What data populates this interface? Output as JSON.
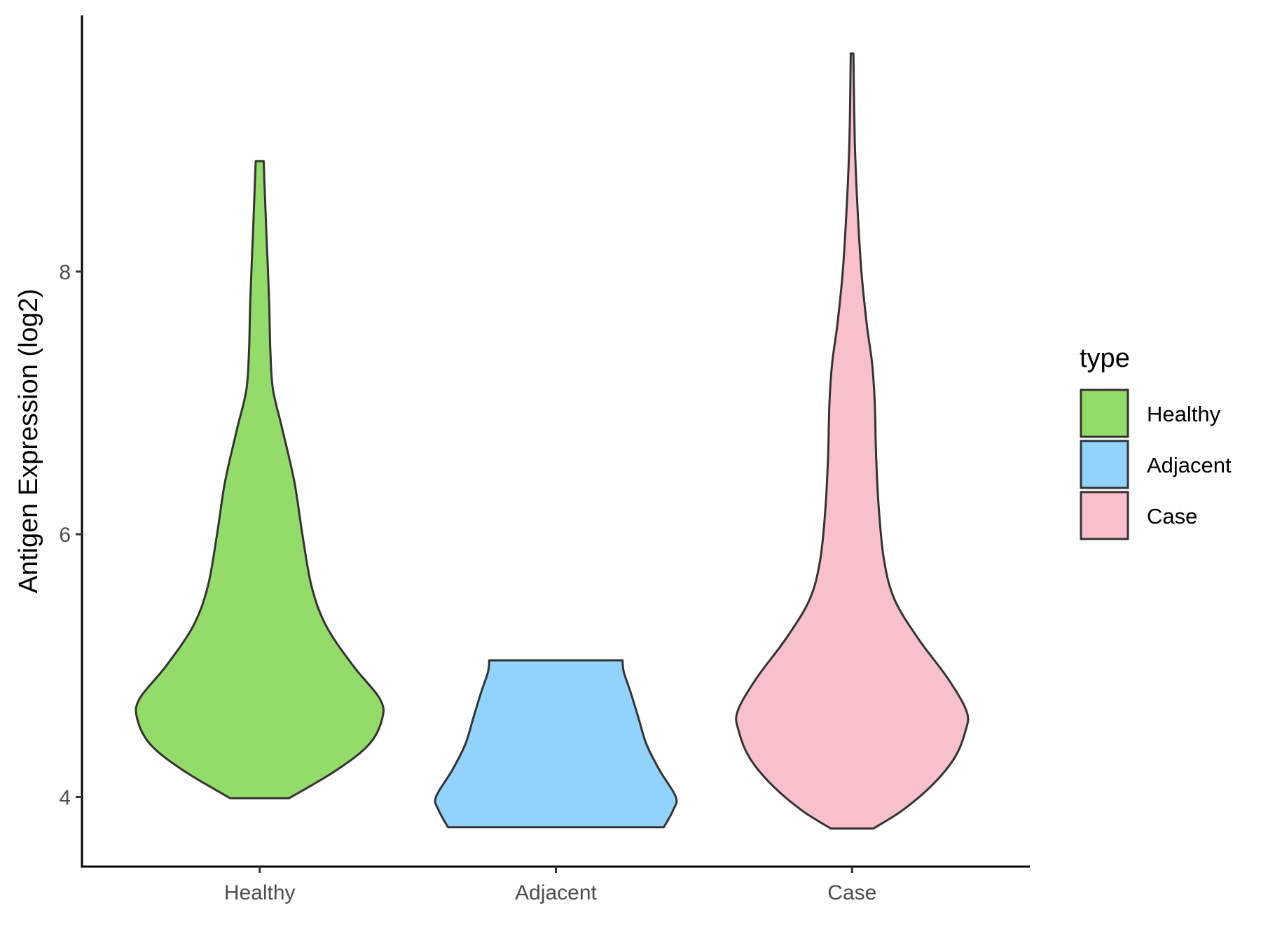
{
  "chart_data": {
    "type": "violin",
    "title": "",
    "xlabel": "",
    "ylabel": "Antigen Expression (log2)",
    "categories": [
      "Healthy",
      "Adjacent",
      "Case"
    ],
    "yticks": [
      4,
      6,
      8
    ],
    "ylim": [
      3.47,
      9.95
    ],
    "grid": false,
    "legend": {
      "title": "type",
      "position": "right",
      "entries": [
        "Healthy",
        "Adjacent",
        "Case"
      ]
    },
    "colors": {
      "Healthy": "#93dc6a",
      "Adjacent": "#92d3fd",
      "Case": "#f8c0cb",
      "outline": "#333333"
    },
    "series": [
      {
        "category": "Healthy",
        "min": 3.99,
        "max": 8.84,
        "profile": [
          [
            3.99,
            0.22
          ],
          [
            4.2,
            0.57
          ],
          [
            4.4,
            0.82
          ],
          [
            4.6,
            0.92
          ],
          [
            4.75,
            0.9
          ],
          [
            5.0,
            0.7
          ],
          [
            5.3,
            0.5
          ],
          [
            5.6,
            0.39
          ],
          [
            6.0,
            0.32
          ],
          [
            6.4,
            0.26
          ],
          [
            6.8,
            0.17
          ],
          [
            7.1,
            0.1
          ],
          [
            7.4,
            0.08
          ],
          [
            7.8,
            0.07
          ],
          [
            8.3,
            0.05
          ],
          [
            8.7,
            0.035
          ],
          [
            8.84,
            0.03
          ]
        ]
      },
      {
        "category": "Adjacent",
        "min": 3.77,
        "max": 5.04,
        "profile": [
          [
            3.77,
            0.81
          ],
          [
            3.9,
            0.88
          ],
          [
            4.0,
            0.9
          ],
          [
            4.2,
            0.78
          ],
          [
            4.4,
            0.68
          ],
          [
            4.6,
            0.62
          ],
          [
            4.8,
            0.56
          ],
          [
            4.95,
            0.51
          ],
          [
            5.04,
            0.5
          ]
        ]
      },
      {
        "category": "Case",
        "min": 3.76,
        "max": 9.66,
        "profile": [
          [
            3.76,
            0.16
          ],
          [
            3.9,
            0.38
          ],
          [
            4.1,
            0.61
          ],
          [
            4.3,
            0.77
          ],
          [
            4.5,
            0.85
          ],
          [
            4.65,
            0.86
          ],
          [
            4.9,
            0.72
          ],
          [
            5.2,
            0.5
          ],
          [
            5.5,
            0.32
          ],
          [
            5.8,
            0.24
          ],
          [
            6.2,
            0.2
          ],
          [
            6.6,
            0.18
          ],
          [
            7.0,
            0.17
          ],
          [
            7.3,
            0.15
          ],
          [
            7.6,
            0.11
          ],
          [
            8.0,
            0.07
          ],
          [
            8.5,
            0.04
          ],
          [
            9.0,
            0.02
          ],
          [
            9.66,
            0.01
          ]
        ]
      }
    ]
  }
}
